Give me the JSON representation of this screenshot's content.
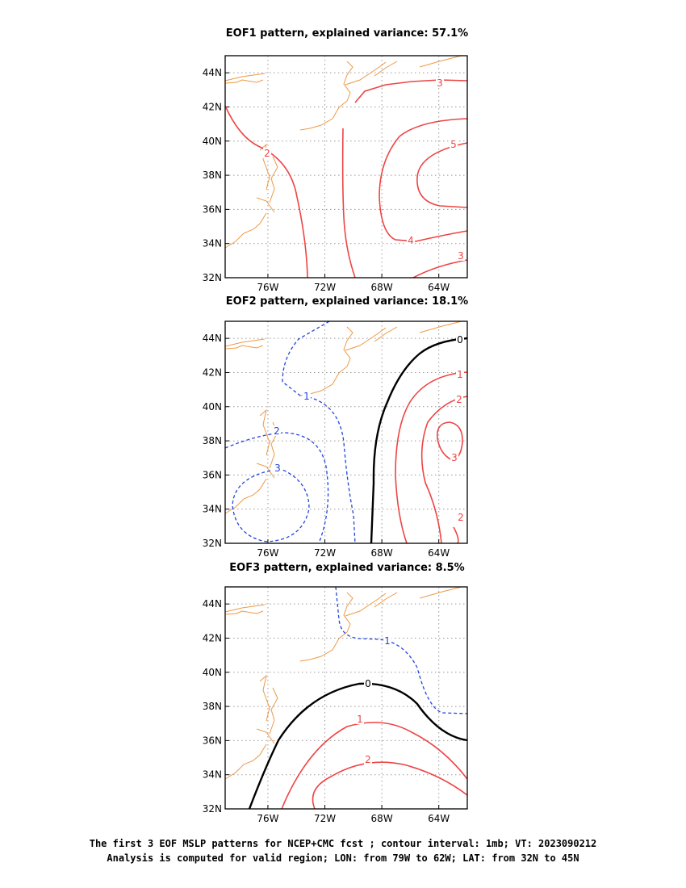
{
  "chart_data": [
    {
      "type": "contour",
      "title": "EOF1 pattern, explained variance: 57.1%",
      "x_ticks": [
        "76W",
        "72W",
        "68W",
        "64W"
      ],
      "y_ticks": [
        "44N",
        "42N",
        "40N",
        "38N",
        "36N",
        "34N",
        "32N"
      ],
      "xlim": [
        -79,
        -62
      ],
      "ylim": [
        32,
        45
      ],
      "grid": true,
      "contour_labels": [
        "3",
        "2",
        "5",
        "4",
        "3"
      ]
    },
    {
      "type": "contour",
      "title": "EOF2 pattern, explained variance: 18.1%",
      "x_ticks": [
        "76W",
        "72W",
        "68W",
        "64W"
      ],
      "y_ticks": [
        "44N",
        "42N",
        "40N",
        "38N",
        "36N",
        "34N",
        "32N"
      ],
      "xlim": [
        -79,
        -62
      ],
      "ylim": [
        32,
        45
      ],
      "grid": true,
      "contour_labels": [
        "0",
        "1",
        "2",
        "3",
        "2",
        "-1",
        "-2",
        "-3"
      ]
    },
    {
      "type": "contour",
      "title": "EOF3 pattern, explained variance: 8.5%",
      "x_ticks": [
        "76W",
        "72W",
        "68W",
        "64W"
      ],
      "y_ticks": [
        "44N",
        "42N",
        "40N",
        "38N",
        "36N",
        "34N",
        "32N"
      ],
      "xlim": [
        -79,
        -62
      ],
      "ylim": [
        32,
        45
      ],
      "grid": true,
      "contour_labels": [
        "-1",
        "0",
        "1",
        "2"
      ]
    }
  ],
  "caption": {
    "line1": "The first 3 EOF MSLP patterns for NCEP+CMC fcst ; contour interval: 1mb; VT: 2023090212",
    "line2": "Analysis is computed for valid region; LON: from 79W to 62W; LAT: from 32N to 45N"
  },
  "colors": {
    "positive": "#ee4444",
    "negative": "#2244dd",
    "zero": "#000000",
    "coast": "#ee9944",
    "grid": "#999999"
  }
}
